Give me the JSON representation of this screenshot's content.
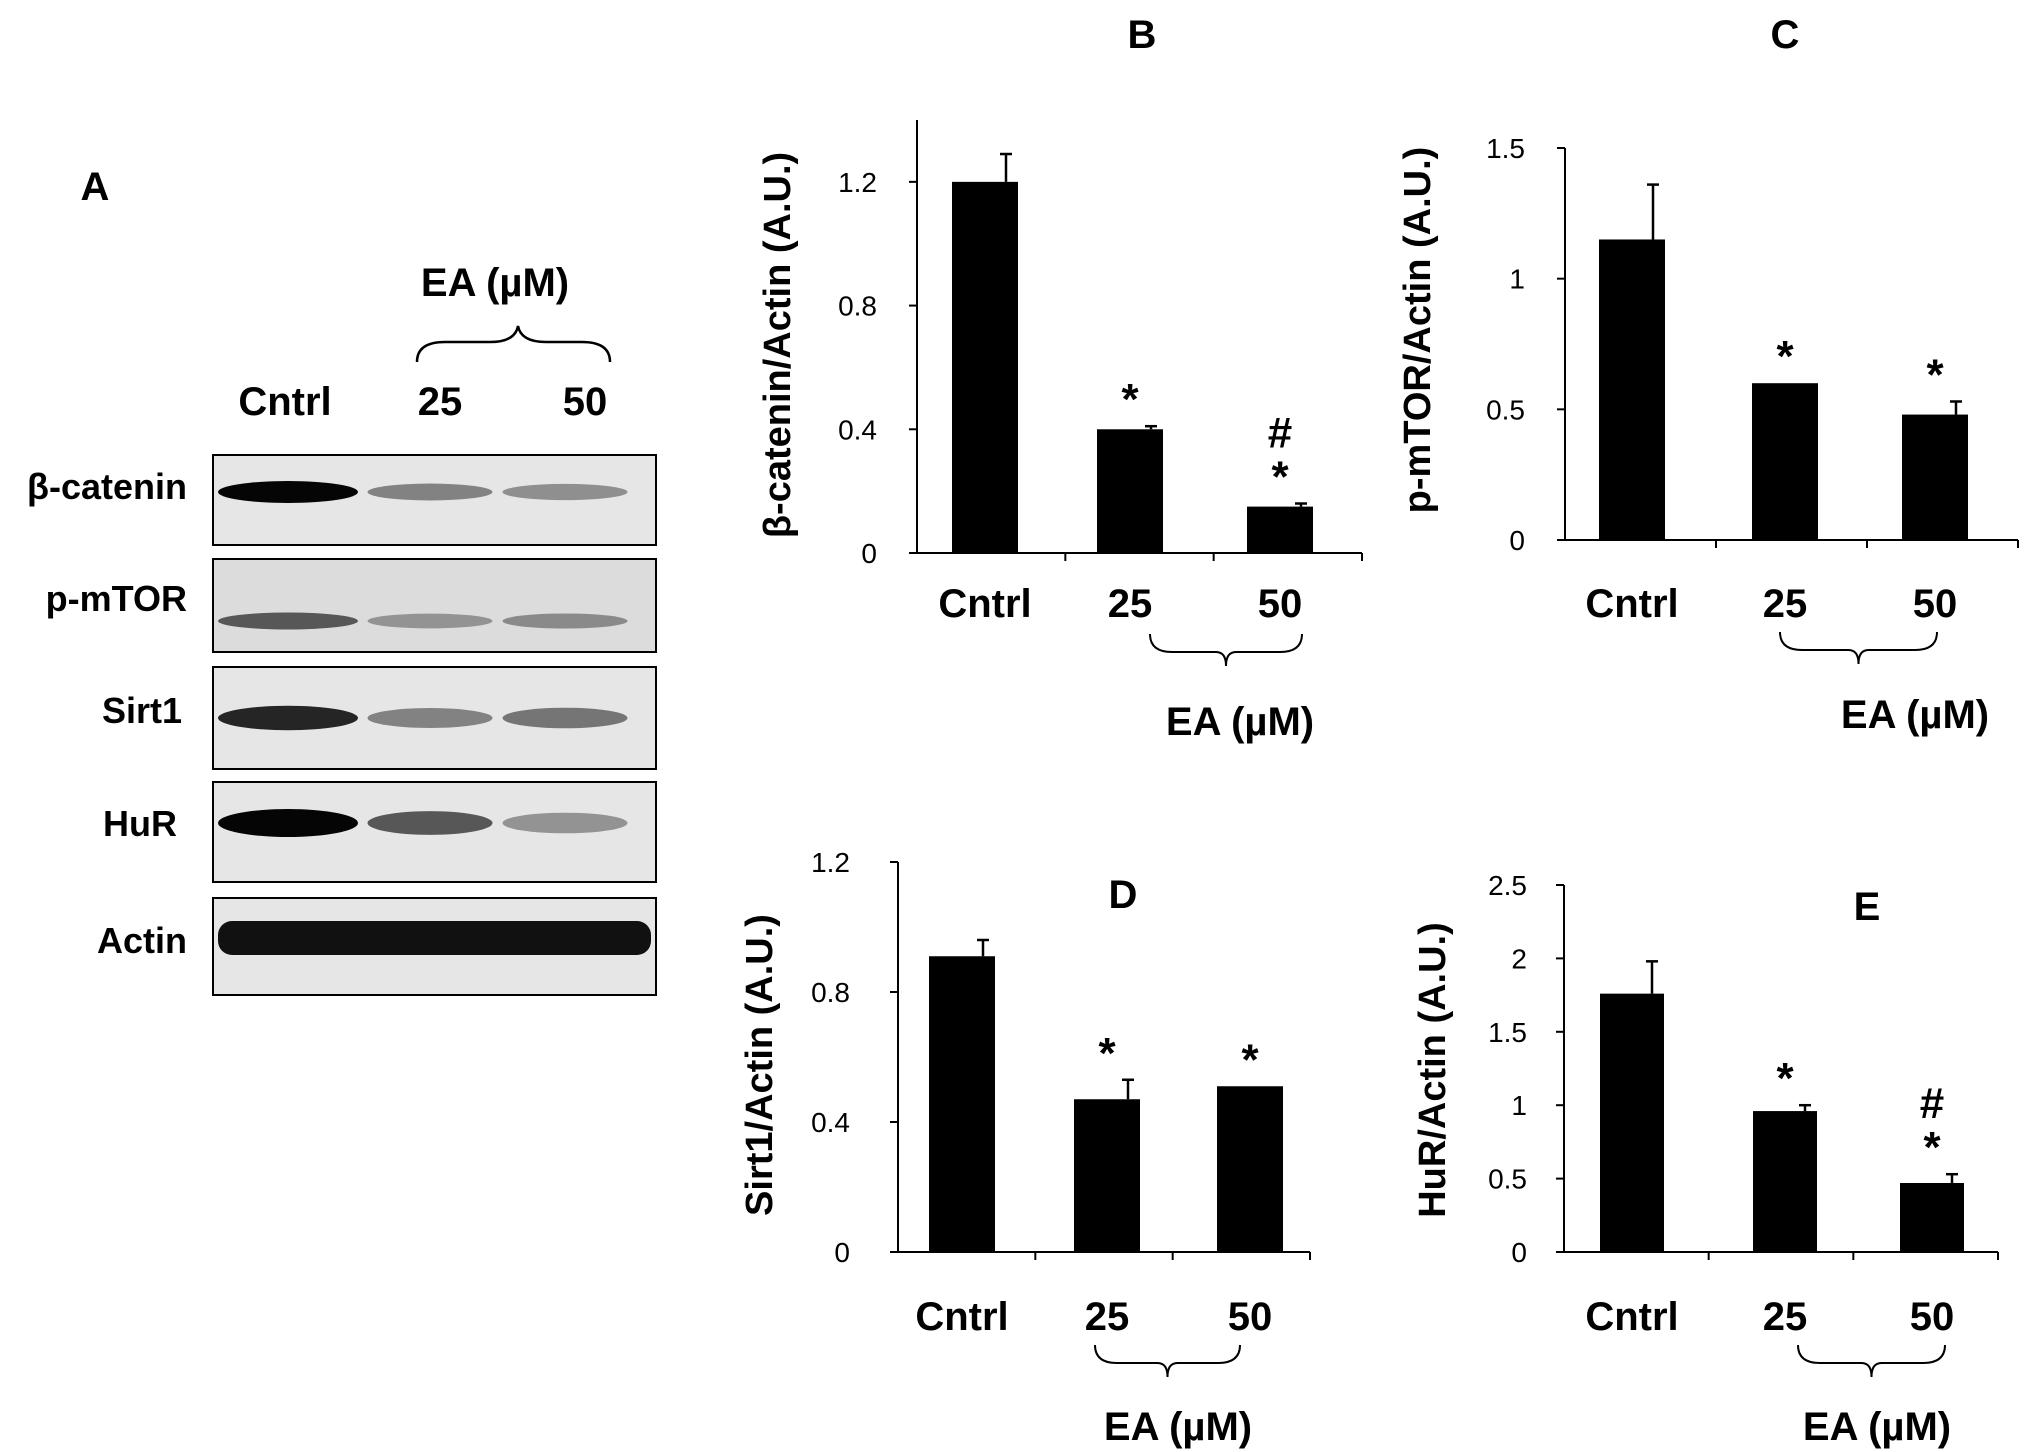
{
  "panels": {
    "A": {
      "letter": "A",
      "treatment_label": "EA (µM)",
      "lane_labels": [
        "Cntrl",
        "25",
        "50"
      ],
      "band_labels": [
        "β-catenin",
        "p-mTOR",
        "Sirt1",
        "HuR",
        "Actin"
      ],
      "band_intensity": [
        [
          1.0,
          0.42,
          0.36
        ],
        [
          0.62,
          0.34,
          0.38
        ],
        [
          0.85,
          0.42,
          0.48
        ],
        [
          1.0,
          0.62,
          0.34
        ],
        [
          0.95,
          0.95,
          0.95
        ]
      ]
    }
  },
  "chart_data": [
    {
      "panel": "B",
      "type": "bar",
      "categories": [
        "Cntrl",
        "25",
        "50"
      ],
      "values": [
        1.2,
        0.4,
        0.15
      ],
      "errors": [
        0.09,
        0.01,
        0.01
      ],
      "significance": [
        [],
        [
          "*"
        ],
        [
          "#",
          "*"
        ]
      ],
      "ylabel": "β-catenin/Actin (A.U.)",
      "ylim": [
        0,
        1.4
      ],
      "yticks": [
        0,
        0.4,
        0.8,
        1.2
      ],
      "ytick_labels": [
        "0",
        "0.4",
        "0.8",
        "1.2"
      ],
      "bracket_label": "EA (µM)",
      "bar_color": "#000000"
    },
    {
      "panel": "C",
      "type": "bar",
      "categories": [
        "Cntrl",
        "25",
        "50"
      ],
      "values": [
        1.15,
        0.6,
        0.48
      ],
      "errors": [
        0.21,
        0.0,
        0.05
      ],
      "significance": [
        [],
        [
          "*"
        ],
        [
          "*"
        ]
      ],
      "ylabel": "p-mTOR/Actin (A.U.)",
      "ylim": [
        0,
        1.5
      ],
      "yticks": [
        0,
        0.5,
        1,
        1.5
      ],
      "ytick_labels": [
        "0",
        "0.5",
        "1",
        "1.5"
      ],
      "bracket_label": "EA (µM)",
      "bar_color": "#000000"
    },
    {
      "panel": "D",
      "type": "bar",
      "categories": [
        "Cntrl",
        "25",
        "50"
      ],
      "values": [
        0.91,
        0.47,
        0.51
      ],
      "errors": [
        0.05,
        0.06,
        0.0
      ],
      "significance": [
        [],
        [
          "*"
        ],
        [
          "*"
        ]
      ],
      "ylabel": "Sirt1/Actin (A.U.)",
      "ylim": [
        0,
        1.2
      ],
      "yticks": [
        0,
        0.4,
        0.8,
        1.2
      ],
      "ytick_labels": [
        "0",
        "0.4",
        "0.8",
        "1.2"
      ],
      "bracket_label": "EA (µM)",
      "bar_color": "#000000"
    },
    {
      "panel": "E",
      "type": "bar",
      "categories": [
        "Cntrl",
        "25",
        "50"
      ],
      "values": [
        1.76,
        0.96,
        0.47
      ],
      "errors": [
        0.22,
        0.04,
        0.06
      ],
      "significance": [
        [],
        [
          "*"
        ],
        [
          "#",
          "*"
        ]
      ],
      "ylabel": "HuR/Actin (A.U.)",
      "ylim": [
        0,
        2.5
      ],
      "yticks": [
        0,
        0.5,
        1,
        1.5,
        2,
        2.5
      ],
      "ytick_labels": [
        "0",
        "0.5",
        "1",
        "1.5",
        "2",
        "2.5"
      ],
      "bracket_label": "EA (µM)",
      "bar_color": "#000000"
    }
  ]
}
